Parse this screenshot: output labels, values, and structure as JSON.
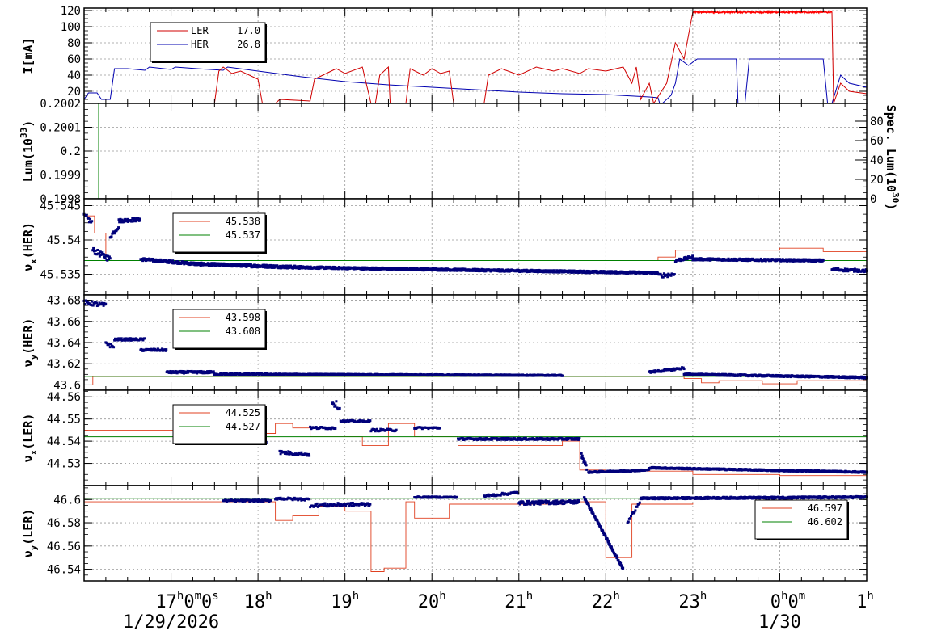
{
  "chart_data": [
    {
      "type": "line",
      "panel": "current",
      "ylabel": "I[mA]",
      "ylim": [
        5,
        123
      ],
      "yticks": [
        "20",
        "40",
        "60",
        "80",
        "100",
        "120"
      ],
      "legend": [
        {
          "name": "LER",
          "value": "17.0",
          "color": "#d00000"
        },
        {
          "name": "HER",
          "value": "26.8",
          "color": "#0000b0"
        }
      ]
    },
    {
      "type": "line",
      "panel": "luminosity",
      "ylabel": "Lum(10",
      "ylabel_sup": "33",
      "ylabel_close": ")",
      "ylim": [
        0.1998,
        0.2002
      ],
      "yticks": [
        "0.1998",
        "0.1999",
        "0.2",
        "0.2001",
        "0.2002"
      ],
      "y2label": "Spec. Lum(10",
      "y2label_sup": "30",
      "y2label_close": ")",
      "y2ticks": [
        "0",
        "20",
        "40",
        "60",
        "80"
      ]
    },
    {
      "type": "scatter",
      "panel": "nux_her",
      "ylabel": "ν",
      "ylabel_sub": "x",
      "ylabel_rest": "(HER)",
      "ylim": [
        45.532,
        45.546
      ],
      "yticks": [
        "45.535",
        "45.54",
        "45.545"
      ],
      "legend": [
        {
          "name": "",
          "value": "45.538",
          "color": "#e04020"
        },
        {
          "name": "",
          "value": "45.537",
          "color": "#008000"
        }
      ]
    },
    {
      "type": "scatter",
      "panel": "nuy_her",
      "ylabel": "ν",
      "ylabel_sub": "y",
      "ylabel_rest": "(HER)",
      "ylim": [
        43.595,
        43.685
      ],
      "yticks": [
        "43.6",
        "43.62",
        "43.64",
        "43.66",
        "43.68"
      ],
      "legend": [
        {
          "name": "",
          "value": "43.598",
          "color": "#e04020"
        },
        {
          "name": "",
          "value": "43.608",
          "color": "#008000"
        }
      ]
    },
    {
      "type": "scatter",
      "panel": "nux_ler",
      "ylabel": "ν",
      "ylabel_sub": "x",
      "ylabel_rest": "(LER)",
      "ylim": [
        44.52,
        44.563
      ],
      "yticks": [
        "44.53",
        "44.54",
        "44.55",
        "44.56"
      ],
      "legend": [
        {
          "name": "",
          "value": "44.525",
          "color": "#e04020"
        },
        {
          "name": "",
          "value": "44.527",
          "color": "#008000"
        }
      ]
    },
    {
      "type": "scatter",
      "panel": "nuy_ler",
      "ylabel": "ν",
      "ylabel_sub": "y",
      "ylabel_rest": "(LER)",
      "ylim": [
        46.53,
        46.612
      ],
      "yticks": [
        "46.54",
        "46.56",
        "46.58",
        "46.6"
      ],
      "legend": [
        {
          "name": "",
          "value": "46.597",
          "color": "#e04020"
        },
        {
          "name": "",
          "value": "46.602",
          "color": "#008000"
        }
      ]
    }
  ],
  "time_axis": {
    "labels": [
      {
        "main": "17",
        "sup": "h",
        "main2": "0",
        "sup2": "m",
        "main3": "0",
        "sup3": "s",
        "hour": 17
      },
      {
        "main": "18",
        "sup": "h",
        "hour": 18
      },
      {
        "main": "19",
        "sup": "h",
        "hour": 19
      },
      {
        "main": "20",
        "sup": "h",
        "hour": 20
      },
      {
        "main": "21",
        "sup": "h",
        "hour": 21
      },
      {
        "main": "22",
        "sup": "h",
        "hour": 22
      },
      {
        "main": "23",
        "sup": "h",
        "hour": 23
      },
      {
        "main": "0",
        "sup": "h",
        "main2": "0",
        "sup2": "m",
        "hour": 24
      },
      {
        "main": "1",
        "sup": "h",
        "hour": 25
      }
    ],
    "dates": [
      {
        "text": "1/29/2026",
        "hour": 17
      },
      {
        "text": "1/30",
        "hour": 24
      }
    ],
    "xlim": [
      16.0,
      25.0
    ]
  }
}
